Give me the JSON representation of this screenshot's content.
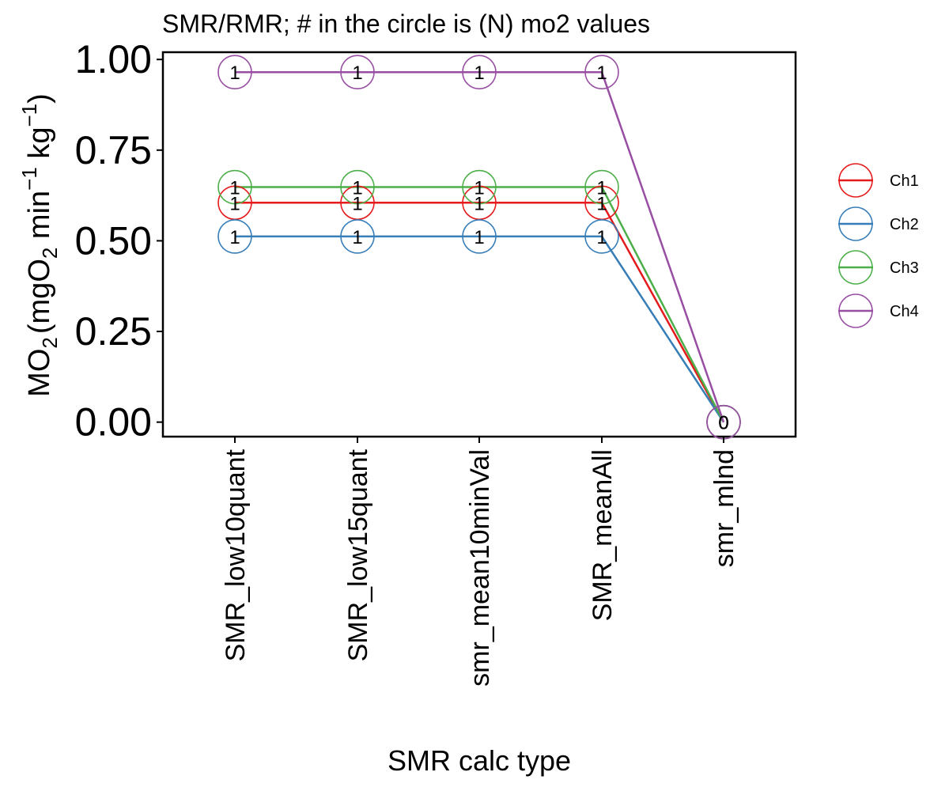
{
  "chart_data": {
    "type": "line",
    "title": "SMR/RMR; # in the circle is (N) mo2 values",
    "xlabel": "SMR calc type",
    "ylabel": {
      "prefix": "MO",
      "prefix_sub": "2",
      "open_paren": "(",
      "unit_a": "mgO",
      "unit_a_sub": "2",
      "unit_b": " min",
      "unit_b_sup": "−1",
      "unit_c": " kg",
      "unit_c_sup": "−1",
      "close_paren": ")"
    },
    "categories": [
      "SMR_low10quant",
      "SMR_low15quant",
      "smr_mean10minVal",
      "SMR_meanAll",
      "smr_mlnd"
    ],
    "ylim": [
      -0.04,
      1.02
    ],
    "yticks": [
      0,
      0.25,
      0.5,
      0.75,
      1
    ],
    "ytick_labels": [
      "0.00",
      "0.25",
      "0.50",
      "0.75",
      "1.00"
    ],
    "grid": false,
    "legend_position": "right",
    "series": [
      {
        "name": "Ch1",
        "color": "#E41A1C",
        "values": [
          0.605,
          0.605,
          0.605,
          0.605,
          0
        ],
        "n": [
          "1",
          "1",
          "1",
          "1",
          "0"
        ]
      },
      {
        "name": "Ch2",
        "color": "#377EB8",
        "values": [
          0.512,
          0.512,
          0.512,
          0.512,
          0
        ],
        "n": [
          "1",
          "1",
          "1",
          "1",
          "0"
        ]
      },
      {
        "name": "Ch3",
        "color": "#4DAF4A",
        "values": [
          0.648,
          0.648,
          0.648,
          0.648,
          0
        ],
        "n": [
          "1",
          "1",
          "1",
          "1",
          "0"
        ]
      },
      {
        "name": "Ch4",
        "color": "#984EA3",
        "values": [
          0.965,
          0.965,
          0.965,
          0.965,
          0
        ],
        "n": [
          "1",
          "1",
          "1",
          "1",
          "0"
        ]
      }
    ]
  }
}
